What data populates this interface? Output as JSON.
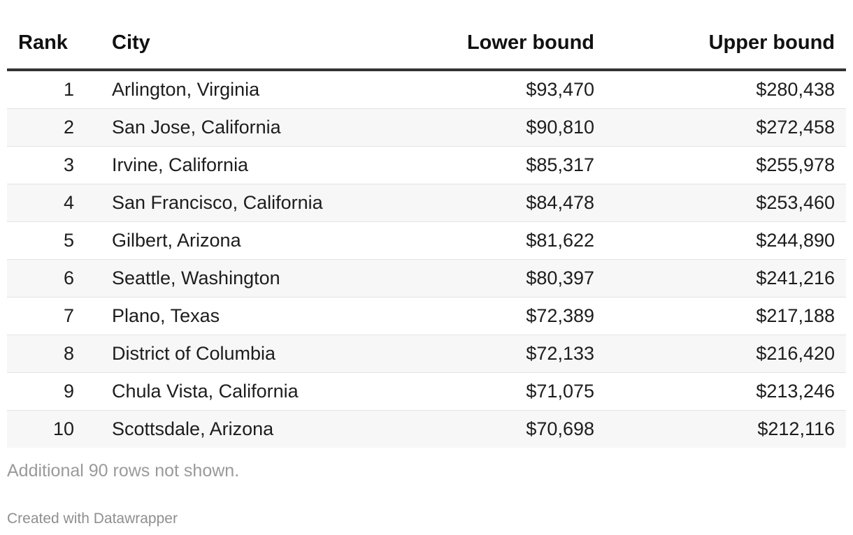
{
  "chart_data": {
    "type": "table",
    "columns": [
      "Rank",
      "City",
      "Lower bound",
      "Upper bound"
    ],
    "rows": [
      {
        "rank": "1",
        "city": "Arlington, Virginia",
        "lower": "$93,470",
        "upper": "$280,438"
      },
      {
        "rank": "2",
        "city": "San Jose, California",
        "lower": "$90,810",
        "upper": "$272,458"
      },
      {
        "rank": "3",
        "city": "Irvine, California",
        "lower": "$85,317",
        "upper": "$255,978"
      },
      {
        "rank": "4",
        "city": "San Francisco, California",
        "lower": "$84,478",
        "upper": "$253,460"
      },
      {
        "rank": "5",
        "city": "Gilbert, Arizona",
        "lower": "$81,622",
        "upper": "$244,890"
      },
      {
        "rank": "6",
        "city": "Seattle, Washington",
        "lower": "$80,397",
        "upper": "$241,216"
      },
      {
        "rank": "7",
        "city": "Plano, Texas",
        "lower": "$72,389",
        "upper": "$217,188"
      },
      {
        "rank": "8",
        "city": "District of Columbia",
        "lower": "$72,133",
        "upper": "$216,420"
      },
      {
        "rank": "9",
        "city": "Chula Vista, California",
        "lower": "$71,075",
        "upper": "$213,246"
      },
      {
        "rank": "10",
        "city": "Scottsdale, Arizona",
        "lower": "$70,698",
        "upper": "$212,116"
      }
    ],
    "footnote": "Additional 90 rows not shown."
  },
  "credit": "Created with Datawrapper"
}
